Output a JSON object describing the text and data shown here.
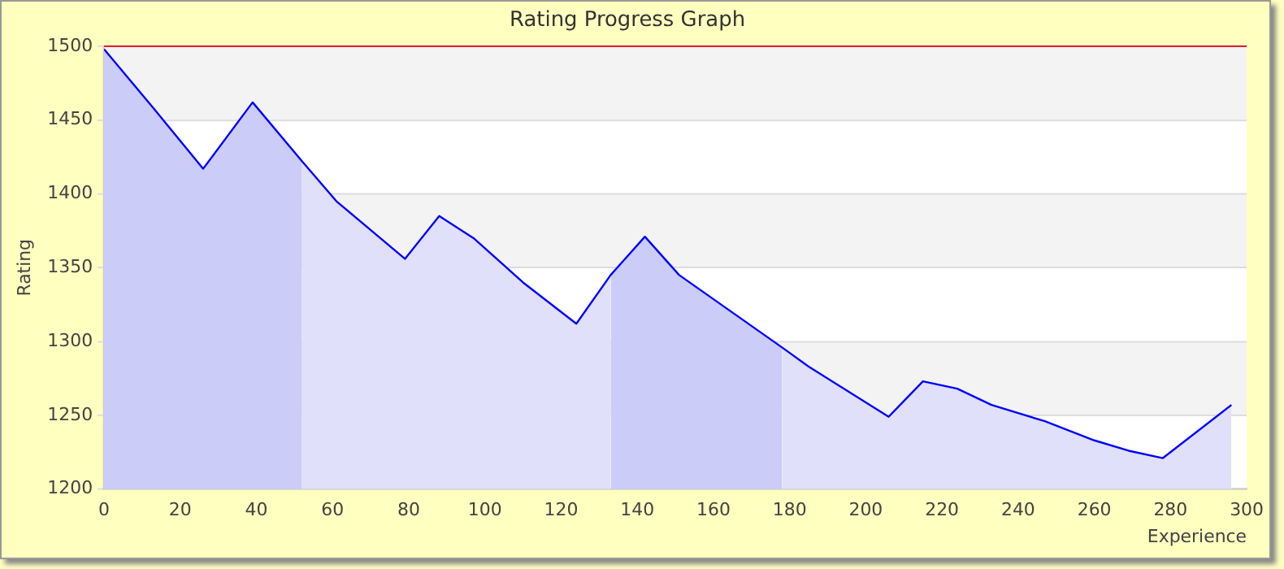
{
  "chart_data": {
    "type": "area",
    "title": "Rating Progress Graph",
    "xlabel": "Experience",
    "ylabel": "Rating",
    "xlim": [
      0,
      300
    ],
    "xticks": [
      0,
      20,
      40,
      60,
      80,
      100,
      120,
      140,
      160,
      180,
      200,
      220,
      240,
      260,
      280,
      300
    ],
    "ylim": [
      1200,
      1500
    ],
    "yticks": [
      1200,
      1250,
      1300,
      1350,
      1400,
      1450,
      1500
    ],
    "grid": "y",
    "ref_lines": [
      {
        "axis": "y",
        "value": 1500,
        "color": "#dd0000"
      }
    ],
    "series": [
      {
        "type": "line",
        "color": "#0000ff",
        "x": [
          0,
          13,
          26,
          39,
          52,
          61,
          79,
          88,
          97,
          110,
          124,
          133,
          142,
          151,
          178,
          185,
          206,
          215,
          224,
          233,
          247,
          260,
          269,
          278,
          296
        ],
        "values": [
          1498,
          1458,
          1417,
          1462,
          1422,
          1395,
          1356,
          1385,
          1370,
          1340,
          1312,
          1345,
          1371,
          1345,
          1296,
          1283,
          1249,
          1273,
          1268,
          1257,
          1246,
          1233,
          1226,
          1221,
          1257
        ]
      },
      {
        "color": "#ccccf8",
        "x": [
          0,
          13,
          26,
          39,
          52
        ],
        "values": [
          1498,
          1458,
          1417,
          1462,
          1422
        ]
      },
      {
        "color": "#e0e0fa",
        "x": [
          52,
          61,
          79,
          88,
          97,
          110,
          124,
          133
        ],
        "values": [
          1422,
          1395,
          1356,
          1385,
          1370,
          1340,
          1312,
          1345
        ]
      },
      {
        "color": "#ccccf8",
        "x": [
          133,
          142,
          151,
          178
        ],
        "values": [
          1345,
          1371,
          1345,
          1296
        ]
      },
      {
        "color": "#e0e0fa",
        "x": [
          178,
          185,
          206,
          215,
          224,
          233,
          247,
          260,
          269,
          278,
          296
        ],
        "values": [
          1296,
          1283,
          1249,
          1273,
          1268,
          1257,
          1246,
          1233,
          1226,
          1221,
          1257
        ]
      }
    ]
  }
}
